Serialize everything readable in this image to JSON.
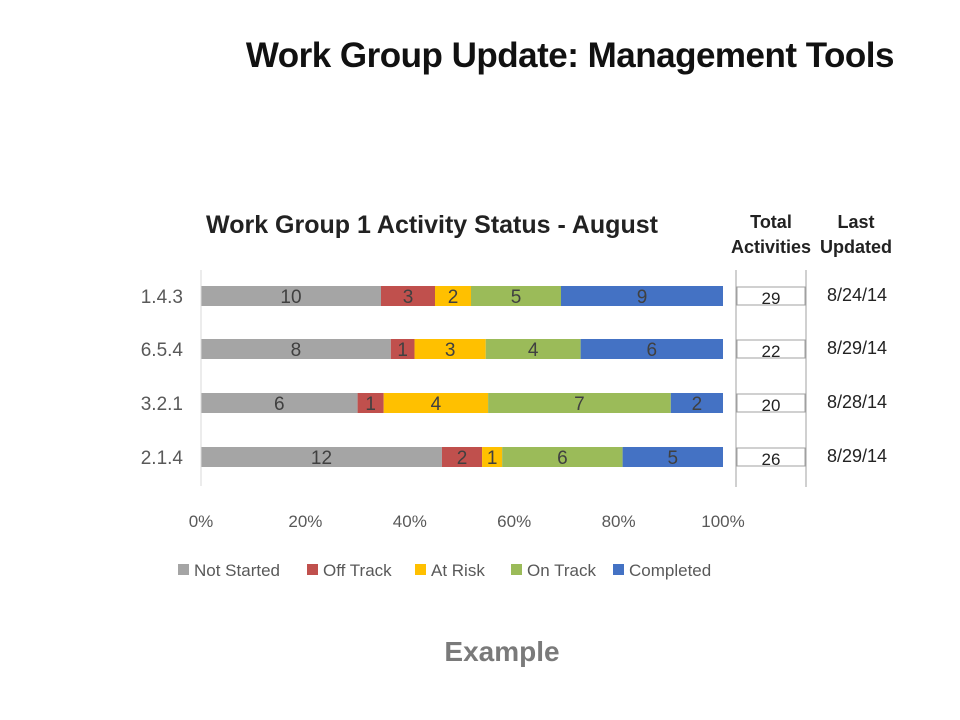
{
  "slide": {
    "title": "Work Group Update: Management Tools",
    "caption": "Example"
  },
  "chart_data": {
    "type": "bar",
    "orientation": "horizontal",
    "stacked": "percent",
    "title": "Work Group 1 Activity Status - August",
    "categories": [
      "1.4.3",
      "6.5.4",
      "3.2.1",
      "2.1.4"
    ],
    "series": [
      {
        "name": "Not Started",
        "color": "#a5a5a5",
        "values": [
          10,
          8,
          6,
          12
        ]
      },
      {
        "name": "Off Track",
        "color": "#c0504d",
        "values": [
          3,
          1,
          1,
          2
        ]
      },
      {
        "name": "At Risk",
        "color": "#ffc000",
        "values": [
          2,
          3,
          4,
          1
        ]
      },
      {
        "name": "On Track",
        "color": "#9bbb59",
        "values": [
          5,
          4,
          7,
          6
        ]
      },
      {
        "name": "Completed",
        "color": "#4472c4",
        "values": [
          9,
          6,
          2,
          5
        ]
      }
    ],
    "xticks": [
      "0%",
      "20%",
      "40%",
      "60%",
      "80%",
      "100%"
    ],
    "xlim": [
      0,
      100
    ],
    "legend_position": "bottom",
    "grid": false,
    "table": {
      "total_header": [
        "Total",
        "Activities"
      ],
      "updated_header": [
        "Last",
        "Updated"
      ],
      "totals": [
        "29",
        "22",
        "20",
        "26"
      ],
      "last_updated": [
        "8/24/14",
        "8/29/14",
        "8/28/14",
        "8/29/14"
      ]
    }
  }
}
